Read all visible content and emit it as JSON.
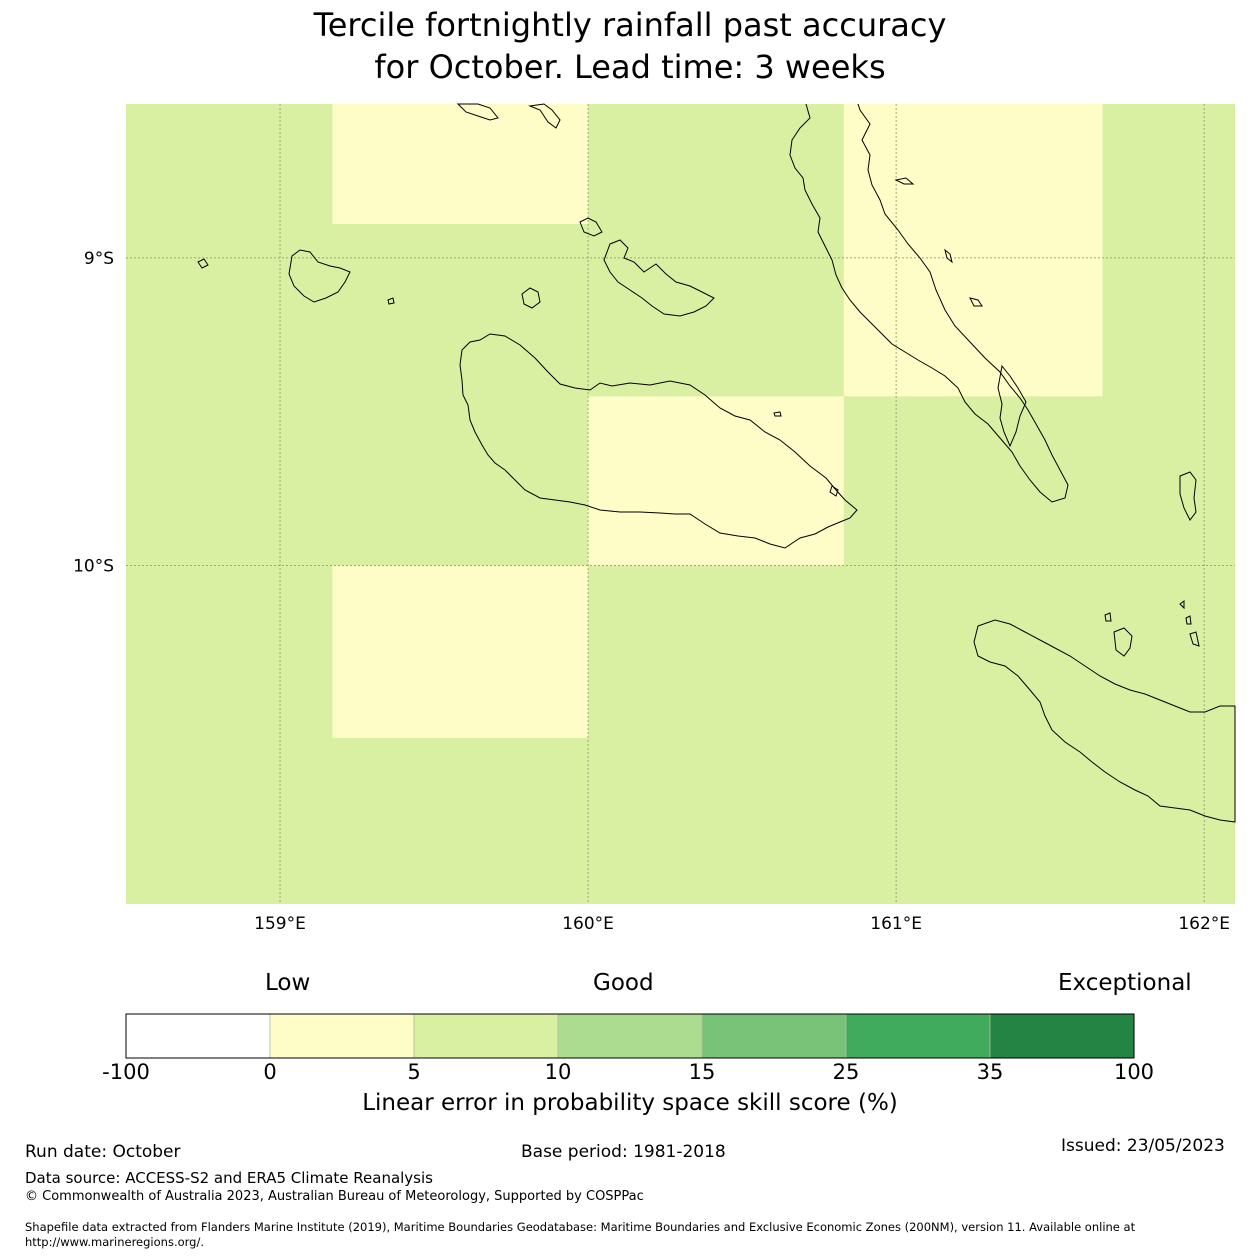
{
  "title": {
    "line1": "Tercile fortnightly rainfall past accuracy",
    "line2": "for October. Lead time: 3 weeks"
  },
  "map": {
    "lon_range": [
      158.5,
      162.1
    ],
    "lat_range": [
      -11.1,
      -8.5
    ],
    "lon_ticks": [
      {
        "value": 159,
        "label": "159°E"
      },
      {
        "value": 160,
        "label": "160°E"
      },
      {
        "value": 161,
        "label": "161°E"
      },
      {
        "value": 162,
        "label": "162°E"
      }
    ],
    "lat_ticks": [
      {
        "value": -9,
        "label": "9°S"
      },
      {
        "value": -10,
        "label": "10°S"
      }
    ],
    "background_value_class": "5-10",
    "cells_0_to_5": [
      {
        "lon": [
          159.17,
          160.0
        ],
        "lat": [
          -8.89,
          -8.5
        ]
      },
      {
        "lon": [
          160.83,
          161.67
        ],
        "lat": [
          -9.45,
          -8.5
        ]
      },
      {
        "lon": [
          160.0,
          160.83
        ],
        "lat": [
          -10.0,
          -9.45
        ]
      },
      {
        "lon": [
          159.17,
          160.0
        ],
        "lat": [
          -10.56,
          -10.0
        ]
      }
    ]
  },
  "colorbar": {
    "categories": [
      "Low",
      "Good",
      "Exceptional"
    ],
    "bins": [
      {
        "from": "-100",
        "to": "0",
        "color": "#ffffff"
      },
      {
        "from": "0",
        "to": "5",
        "color": "#fefdc8"
      },
      {
        "from": "5",
        "to": "10",
        "color": "#d9efa2"
      },
      {
        "from": "10",
        "to": "15",
        "color": "#acdc8f"
      },
      {
        "from": "15",
        "to": "25",
        "color": "#78c378"
      },
      {
        "from": "25",
        "to": "35",
        "color": "#41ab5d"
      },
      {
        "from": "35",
        "to": "100",
        "color": "#238443"
      }
    ],
    "ticks": [
      "-100",
      "0",
      "5",
      "10",
      "15",
      "25",
      "35",
      "100"
    ],
    "label": "Linear error in probability space skill score (%)"
  },
  "footer": {
    "run_date": "Run date: October",
    "base_period": "Base period: 1981-2018",
    "issued": "Issued: 23/05/2023",
    "data_source": "Data source: ACCESS-S2 and ERA5 Climate Reanalysis",
    "copyright": "© Commonwealth of Australia 2023, Australian Bureau of Meteorology, Supported by COSPPac",
    "shapefile_line1": "Shapefile data extracted from Flanders Marine Institute (2019), Maritime Boundaries Geodatabase: Maritime Boundaries and Exclusive Economic Zones (200NM), version 11. Available online at",
    "shapefile_line2": "http://www.marineregions.org/."
  },
  "colors": {
    "cell_0_5": "#fefdc8",
    "cell_5_10": "#d9efa2",
    "gridline": "#9aa87a",
    "coastline": "#000000"
  }
}
